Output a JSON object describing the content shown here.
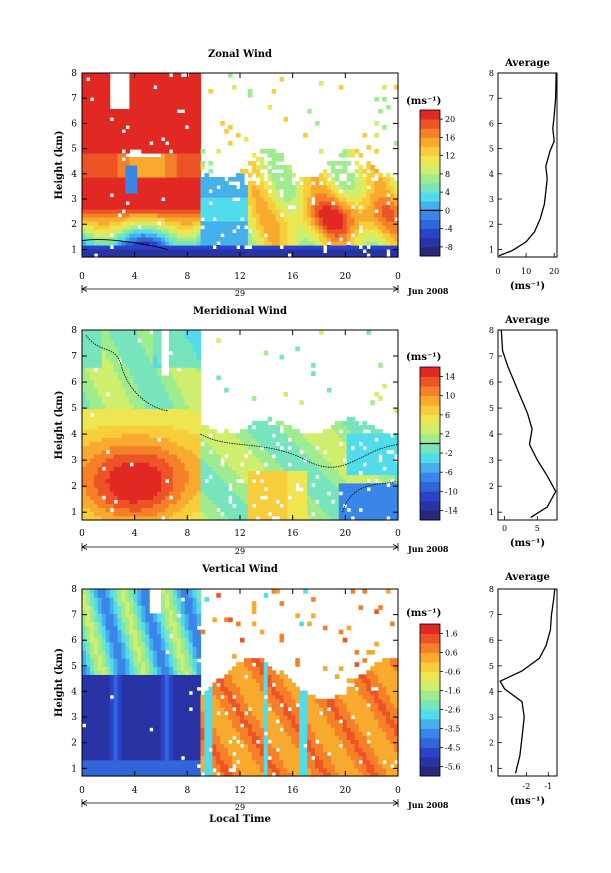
{
  "chart_data": [
    {
      "type": "heatmap",
      "title": "Zonal Wind",
      "ylabel": "Height (km)",
      "x_ticks": [
        "0",
        "4",
        "8",
        "12",
        "16",
        "20",
        "0"
      ],
      "y_ticks": [
        "1",
        "2",
        "3",
        "4",
        "5",
        "6",
        "7",
        "8"
      ],
      "xlim": [
        0,
        24
      ],
      "ylim": [
        0.7,
        8
      ],
      "date_day": "29",
      "date_label": "Jun 2008",
      "unit": "(ms⁻¹)",
      "colorbar": {
        "ticks": [
          "-8",
          "-4",
          "0",
          "4",
          "8",
          "12",
          "16",
          "20"
        ],
        "min": -10,
        "max": 22
      },
      "zero_contour": true,
      "profile": {
        "title": "Average",
        "xlabel": "(ms⁻¹)",
        "x_ticks": [
          "0",
          "10",
          "20"
        ],
        "xlim": [
          0,
          21
        ],
        "ylim": [
          0.7,
          8
        ],
        "points": [
          [
            0.4,
            0.75
          ],
          [
            5,
            0.95
          ],
          [
            10,
            1.3
          ],
          [
            13,
            1.7
          ],
          [
            15,
            2.2
          ],
          [
            16.5,
            2.8
          ],
          [
            17,
            3.3
          ],
          [
            17.5,
            3.8
          ],
          [
            17,
            4.3
          ],
          [
            18.5,
            4.9
          ],
          [
            20,
            5.3
          ],
          [
            19.5,
            5.8
          ],
          [
            20,
            6.3
          ],
          [
            20.5,
            7.0
          ],
          [
            20.7,
            8.0
          ]
        ]
      }
    },
    {
      "type": "heatmap",
      "title": "Meridional Wind",
      "ylabel": "Height (km)",
      "x_ticks": [
        "0",
        "4",
        "8",
        "12",
        "16",
        "20",
        "0"
      ],
      "y_ticks": [
        "1",
        "2",
        "3",
        "4",
        "5",
        "6",
        "7",
        "8"
      ],
      "xlim": [
        0,
        24
      ],
      "ylim": [
        0.7,
        8
      ],
      "date_day": "29",
      "date_label": "Jun 2008",
      "unit": "(ms⁻¹)",
      "colorbar": {
        "ticks": [
          "-14",
          "-10",
          "-6",
          "-2",
          "2",
          "6",
          "10",
          "14"
        ],
        "min": -16,
        "max": 16
      },
      "zero_contour": true,
      "profile": {
        "title": "Average",
        "xlabel": "(ms⁻¹)",
        "x_ticks": [
          "0",
          "5"
        ],
        "xlim": [
          -1,
          8
        ],
        "ylim": [
          0.7,
          8
        ],
        "points": [
          [
            4,
            0.8
          ],
          [
            6.5,
            1.2
          ],
          [
            7.8,
            1.8
          ],
          [
            6.5,
            2.4
          ],
          [
            5,
            3.0
          ],
          [
            3.8,
            3.6
          ],
          [
            4.2,
            4.2
          ],
          [
            3.5,
            4.8
          ],
          [
            2.5,
            5.4
          ],
          [
            1.5,
            6.0
          ],
          [
            0.5,
            6.6
          ],
          [
            -0.3,
            7.2
          ],
          [
            -0.5,
            8.0
          ]
        ]
      }
    },
    {
      "type": "heatmap",
      "title": "Vertical Wind",
      "ylabel": "Height (km)",
      "xlabel": "Local Time",
      "x_ticks": [
        "0",
        "4",
        "8",
        "12",
        "16",
        "20",
        "0"
      ],
      "y_ticks": [
        "1",
        "2",
        "3",
        "4",
        "5",
        "6",
        "7",
        "8"
      ],
      "xlim": [
        0,
        24
      ],
      "ylim": [
        0.7,
        8
      ],
      "date_day": "29",
      "date_label": "Jun 2008",
      "unit": "(ms⁻¹)",
      "colorbar": {
        "ticks": [
          "-5.6",
          "-4.5",
          "-3.5",
          "-2.6",
          "-1.6",
          "-0.6",
          "0.6",
          "1.6"
        ],
        "min": -6.2,
        "max": 2.2
      },
      "zero_contour": false,
      "profile": {
        "title": "Average",
        "xlabel": "(ms⁻¹)",
        "x_ticks": [
          "-2",
          "-1"
        ],
        "xlim": [
          -3.3,
          -0.6
        ],
        "ylim": [
          0.7,
          8
        ],
        "points": [
          [
            -2.5,
            0.8
          ],
          [
            -2.3,
            1.5
          ],
          [
            -2.2,
            2.2
          ],
          [
            -2.1,
            3.0
          ],
          [
            -2.2,
            3.6
          ],
          [
            -3.0,
            4.1
          ],
          [
            -3.2,
            4.4
          ],
          [
            -2.2,
            4.8
          ],
          [
            -1.4,
            5.3
          ],
          [
            -1.1,
            5.8
          ],
          [
            -0.9,
            6.4
          ],
          [
            -0.85,
            7.0
          ],
          [
            -0.75,
            7.6
          ],
          [
            -0.7,
            8.0
          ]
        ]
      }
    }
  ]
}
